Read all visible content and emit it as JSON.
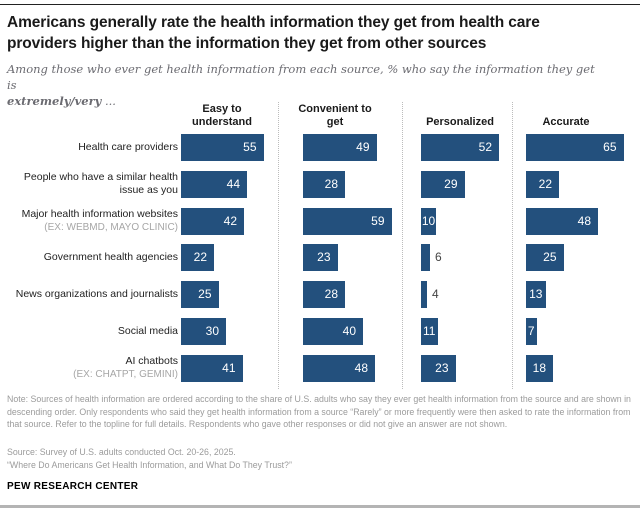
{
  "header": {
    "title": "Americans generally rate the health information they get from health care providers higher than the information they get from other sources",
    "subtitle_line1": "Among those who ever get health information from each source, % who say the information they get is",
    "subtitle_emphasis": "extremely/very",
    "subtitle_suffix": " ..."
  },
  "chart_data": {
    "type": "bar",
    "orientation": "horizontal",
    "units": "% of U.S. adults",
    "bar_color": "#23507D",
    "outside_label_color": "#444444",
    "value_range": [
      0,
      100
    ],
    "legend_position": "none",
    "grid": false,
    "columns": [
      {
        "label": "Easy to understand"
      },
      {
        "label": "Convenient to get"
      },
      {
        "label": "Personalized"
      },
      {
        "label": "Accurate"
      }
    ],
    "rows": [
      {
        "label": "Health care providers",
        "sublabel": "",
        "values": [
          55,
          49,
          52,
          65
        ]
      },
      {
        "label": "People who have a similar health issue as you",
        "sublabel": "",
        "values": [
          44,
          28,
          29,
          22
        ]
      },
      {
        "label": "Major health information websites",
        "sublabel": "(EX: WEBMD, MAYO CLINIC)",
        "values": [
          42,
          59,
          10,
          48
        ]
      },
      {
        "label": "Government health agencies",
        "sublabel": "",
        "values": [
          22,
          23,
          6,
          25
        ]
      },
      {
        "label": "News organizations and journalists",
        "sublabel": "",
        "values": [
          25,
          28,
          4,
          13
        ]
      },
      {
        "label": "Social media",
        "sublabel": "",
        "values": [
          30,
          40,
          11,
          7
        ]
      },
      {
        "label": "AI chatbots",
        "sublabel": "(EX: CHATPT, GEMINI)",
        "values": [
          41,
          48,
          23,
          18
        ]
      }
    ]
  },
  "footer": {
    "note": "Note: Sources of health information are ordered according to the share of U.S. adults who say they ever get health information from the source and are shown in descending order. Only respondents who said they get health information from a source “Rarely” or more frequently were then asked to rate the information from that source. Refer to the topline for full details. Respondents who gave other responses or did not give an answer are not shown.",
    "source": "Source: Survey of U.S. adults conducted Oct. 20-26, 2025.",
    "quote": "“Where Do Americans Get Health Information, and What Do They Trust?”",
    "brand": "PEW RESEARCH CENTER"
  }
}
